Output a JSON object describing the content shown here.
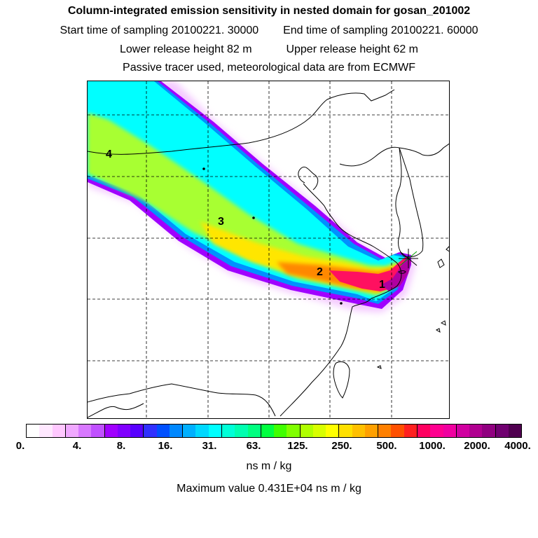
{
  "header": {
    "title": "Column-integrated emission sensitivity in nested domain for gosan_201002",
    "start_time": "Start time of sampling 20100221. 30000",
    "end_time": "End time of sampling 20100221. 60000",
    "lower_height": "Lower release height   82 m",
    "upper_height": "Upper release height   62 m",
    "tracer_note": "Passive tracer used, meteorological data are from ECMWF"
  },
  "map": {
    "markers": [
      "1",
      "2",
      "3",
      "4"
    ]
  },
  "legend": {
    "tick_labels": [
      "0.",
      "4.",
      "8.",
      "16.",
      "31.",
      "63.",
      "125.",
      "250.",
      "500.",
      "1000.",
      "2000.",
      "4000."
    ],
    "colors": [
      "#ffffff",
      "#ffe8ff",
      "#ffc8ff",
      "#f0a8ff",
      "#d878ff",
      "#c050ff",
      "#a000ff",
      "#8000ff",
      "#5800ff",
      "#3030ff",
      "#0050ff",
      "#0088ff",
      "#00b0ff",
      "#00d8ff",
      "#00ffff",
      "#00ffd8",
      "#00ffb0",
      "#00ff80",
      "#00ff40",
      "#40ff00",
      "#80ff00",
      "#b0ff00",
      "#d8ff00",
      "#ffff00",
      "#ffe000",
      "#ffc000",
      "#ffa000",
      "#ff8000",
      "#ff5000",
      "#ff2020",
      "#ff0060",
      "#ff0090",
      "#f000a0",
      "#d000a0",
      "#b00090",
      "#900080",
      "#700070",
      "#500050"
    ],
    "unit": "ns m / kg",
    "max_value": "Maximum value  0.431E+04 ns m / kg"
  }
}
